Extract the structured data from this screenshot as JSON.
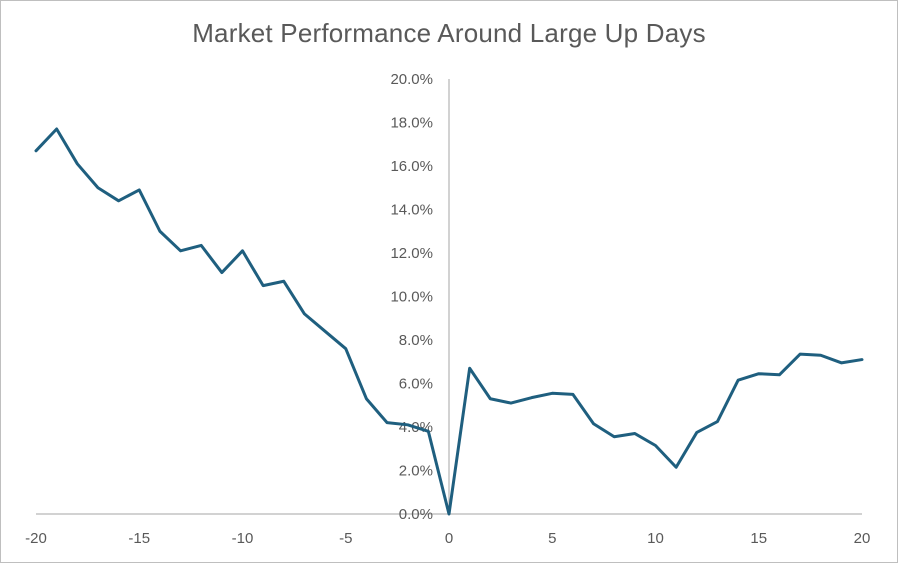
{
  "chart_data": {
    "type": "line",
    "title": "Market Performance Around Large Up Days",
    "xlabel": "",
    "ylabel": "",
    "xlim": [
      -20,
      20
    ],
    "ylim": [
      0.0,
      20.0
    ],
    "x_ticks": [
      -20,
      -15,
      -10,
      -5,
      0,
      5,
      10,
      15,
      20
    ],
    "x_tick_labels": [
      "-20",
      "-15",
      "-10",
      "-5",
      "0",
      "5",
      "10",
      "15",
      "20"
    ],
    "y_ticks": [
      0,
      2,
      4,
      6,
      8,
      10,
      12,
      14,
      16,
      18,
      20
    ],
    "y_tick_labels": [
      "0.0%",
      "2.0%",
      "4.0%",
      "6.0%",
      "8.0%",
      "10.0%",
      "12.0%",
      "14.0%",
      "16.0%",
      "18.0%",
      "20.0%"
    ],
    "grid": false,
    "legend": "none",
    "line_color": "#1f5f7f",
    "series": [
      {
        "x": [
          -20,
          -19,
          -18,
          -17,
          -16,
          -15,
          -14,
          -13,
          -12,
          -11,
          -10,
          -9,
          -8,
          -7,
          -6,
          -5,
          -4,
          -3,
          -2,
          -1,
          0,
          1,
          2,
          3,
          4,
          5,
          6,
          7,
          8,
          9,
          10,
          11,
          12,
          13,
          14,
          15,
          16,
          17,
          18,
          19,
          20
        ],
        "values": [
          16.7,
          17.7,
          16.1,
          15.0,
          14.4,
          14.9,
          13.0,
          12.1,
          12.35,
          11.1,
          12.1,
          10.5,
          10.7,
          9.2,
          8.4,
          7.6,
          5.3,
          4.2,
          4.1,
          3.8,
          0.0,
          6.7,
          5.3,
          5.1,
          5.35,
          5.55,
          5.5,
          4.15,
          3.55,
          3.7,
          3.15,
          2.15,
          3.75,
          4.25,
          6.15,
          6.45,
          6.4,
          7.35,
          7.3,
          6.95,
          7.1
        ]
      }
    ]
  }
}
